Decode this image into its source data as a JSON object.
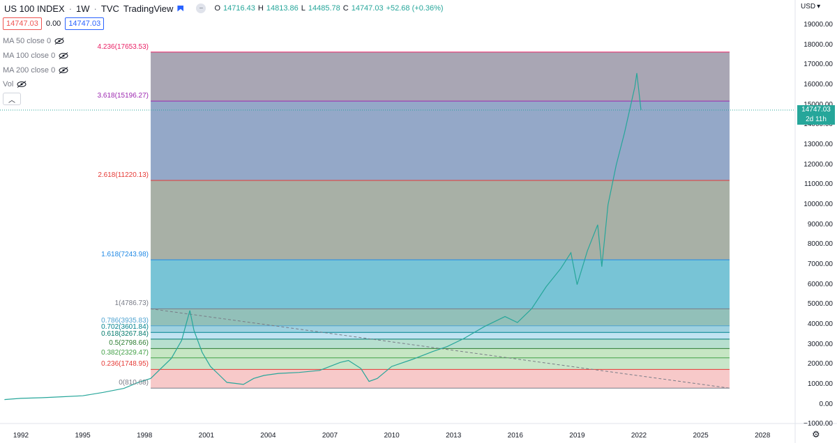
{
  "header": {
    "symbol": "US 100 INDEX",
    "interval": "1W",
    "source": "TVC",
    "platform": "TradingView",
    "ohlc": {
      "o_label": "O",
      "o": "14716.43",
      "h_label": "H",
      "h": "14813.86",
      "l_label": "L",
      "l": "14485.78",
      "c_label": "C",
      "c": "14747.03",
      "change": "+52.68 (+0.36%)"
    }
  },
  "price_row": {
    "sell": "14747.03",
    "spread": "0.00",
    "buy": "14747.03"
  },
  "indicators": [
    {
      "label": "MA 50 close 0"
    },
    {
      "label": "MA 100 close 0"
    },
    {
      "label": "MA 200 close 0"
    },
    {
      "label": "Vol"
    }
  ],
  "currency": "USD",
  "last_price": {
    "value": "14747.03",
    "countdown": "2d 11h"
  },
  "colors": {
    "up": "#26a69a",
    "down": "#ef5350",
    "accent": "#2962ff"
  },
  "chart_data": {
    "type": "line",
    "title": "",
    "xlabel": "",
    "ylabel": "",
    "ylim": [
      -1000,
      19700
    ],
    "xlim": [
      1991.2,
      2030.5
    ],
    "x_ticks": [
      "1992",
      "1995",
      "1998",
      "2001",
      "2004",
      "2007",
      "2010",
      "2013",
      "2016",
      "2019",
      "2022",
      "2025",
      "2028"
    ],
    "x_tick_values": [
      1992,
      1995,
      1998,
      2001,
      2004,
      2007,
      2010,
      2013,
      2016,
      2019,
      2022,
      2025,
      2028
    ],
    "y_ticks": [
      "−1000.00",
      "0.00",
      "1000.00",
      "2000.00",
      "3000.00",
      "4000.00",
      "5000.00",
      "6000.00",
      "7000.00",
      "8000.00",
      "9000.00",
      "10000.00",
      "11000.00",
      "12000.00",
      "13000.00",
      "14000.00",
      "15000.00",
      "16000.00",
      "17000.00",
      "18000.00",
      "19000.00"
    ],
    "y_tick_values": [
      -1000,
      0,
      1000,
      2000,
      3000,
      4000,
      5000,
      6000,
      7000,
      8000,
      9000,
      10000,
      11000,
      12000,
      13000,
      14000,
      15000,
      16000,
      17000,
      18000,
      19000
    ],
    "series": [
      {
        "x": [
          1991.2,
          1992,
          1993,
          1994,
          1995,
          1996,
          1997,
          1997.7,
          1998.3,
          1998.8,
          1999.3,
          1999.8,
          2000.2,
          2000.4,
          2000.8,
          2001.2,
          2001.6,
          2002.0,
          2002.4,
          2002.8,
          2003.3,
          2003.8,
          2004.5,
          2005.5,
          2006.5,
          2007.5,
          2007.9,
          2008.5,
          2008.9,
          2009.3,
          2010,
          2011,
          2012,
          2012.7,
          2013.5,
          2014.5,
          2015.5,
          2016.1,
          2016.8,
          2017.5,
          2018.2,
          2018.7,
          2019.0,
          2019.5,
          2020.0,
          2020.2,
          2020.5,
          2020.9,
          2021.3,
          2021.8,
          2021.9,
          2022.1
        ],
        "y": [
          240,
          300,
          330,
          380,
          430,
          600,
          800,
          1100,
          1300,
          1800,
          2300,
          3200,
          4700,
          3700,
          2600,
          1900,
          1500,
          1100,
          1050,
          1000,
          1300,
          1450,
          1550,
          1600,
          1700,
          2100,
          2200,
          1800,
          1150,
          1300,
          1900,
          2250,
          2650,
          2900,
          3300,
          3900,
          4400,
          4100,
          4800,
          5900,
          6800,
          7600,
          6000,
          7700,
          9000,
          6900,
          10000,
          12000,
          13600,
          15900,
          16600,
          14747
        ]
      }
    ],
    "fib_levels": [
      {
        "ratio": 0,
        "label": "0(810.68)",
        "value": 810.68,
        "color": "#787b86",
        "fill": "#f7c9c9"
      },
      {
        "ratio": 0.236,
        "label": "0.236(1748.95)",
        "value": 1748.95,
        "color": "#e53935",
        "fill": "#c8e6c9"
      },
      {
        "ratio": 0.382,
        "label": "0.382(2329.47)",
        "value": 2329.47,
        "color": "#43a047",
        "fill": "#c6e6c3"
      },
      {
        "ratio": 0.5,
        "label": "0.5(2798.66)",
        "value": 2798.66,
        "color": "#2e7d32",
        "fill": "#b7dfcf"
      },
      {
        "ratio": 0.618,
        "label": "0.618(3267.84)",
        "value": 3267.84,
        "color": "#00796b",
        "fill": "#c1e3f2"
      },
      {
        "ratio": 0.702,
        "label": "0.702(3601.84)",
        "value": 3601.84,
        "color": "#00838f",
        "fill": "#9fd1e0"
      },
      {
        "ratio": 0.786,
        "label": "0.786(3935.83)",
        "value": 3935.83,
        "color": "#4fa3d1",
        "fill": "#92c0b9"
      },
      {
        "ratio": 1,
        "label": "1(4786.73)",
        "value": 4786.73,
        "color": "#787b86",
        "fill": "#78c4d6"
      },
      {
        "ratio": 1.618,
        "label": "1.618(7243.98)",
        "value": 7243.98,
        "color": "#1e88e5",
        "fill": "#a8b0a6"
      },
      {
        "ratio": 2.618,
        "label": "2.618(11220.13)",
        "value": 11220.13,
        "color": "#e53935",
        "fill": "#94a8c8"
      },
      {
        "ratio": 3.618,
        "label": "3.618(15196.27)",
        "value": 15196.27,
        "color": "#9c27b0",
        "fill": "#a9a6b4"
      },
      {
        "ratio": 4.236,
        "label": "4.236(17653.53)",
        "value": 17653.53,
        "color": "#e91e63",
        "fill": ""
      }
    ],
    "fib_x_range": [
      1998.3,
      2026.4
    ],
    "trend_line": {
      "x": [
        1998.3,
        2026.4
      ],
      "y": [
        4786.73,
        810.68
      ]
    },
    "last_price_line": 14747.03
  }
}
